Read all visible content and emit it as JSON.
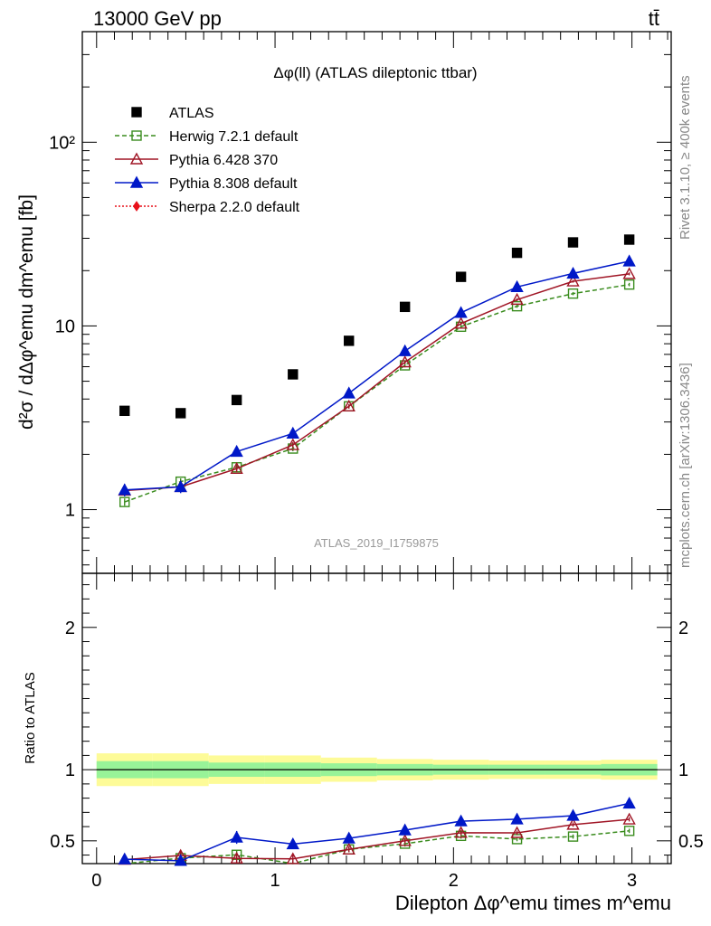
{
  "header": {
    "left": "13000 GeV pp",
    "right": "tt̄"
  },
  "side_text": {
    "rivet": "Rivet 3.1.10, ≥ 400k events",
    "mcplots": "mcplots.cern.ch [arXiv:1306.3436]"
  },
  "chart_data": [
    {
      "type": "scatter",
      "panel": "main",
      "title": "Δφ(ll) (ATLAS dileptonic ttbar)",
      "watermark": "ATLAS_2019_I1759875",
      "ylabel": "d²σ / dΔφ^emu dm^emu [fb]",
      "yscale": "log",
      "ylim": [
        0.45,
        400
      ],
      "xlim": [
        -0.08,
        3.22
      ],
      "yticks": [
        {
          "v": 1,
          "label": "1"
        },
        {
          "v": 10,
          "label": "10"
        },
        {
          "v": 100,
          "label": "10²"
        }
      ],
      "legend_position": "top-left",
      "x": [
        0.157,
        0.471,
        0.785,
        1.1,
        1.414,
        1.728,
        2.042,
        2.356,
        2.67,
        2.985
      ],
      "series": [
        {
          "name": "ATLAS",
          "marker": "square-filled",
          "color": "#000000",
          "dash": "",
          "values": [
            3.45,
            3.35,
            3.95,
            5.45,
            8.3,
            12.7,
            18.5,
            25.0,
            28.5,
            29.5
          ],
          "errors": [
            0,
            0,
            0,
            0,
            0,
            0,
            0,
            0,
            0,
            0
          ]
        },
        {
          "name": "Herwig 7.2.1 default",
          "marker": "square-open",
          "color": "#3a8c1e",
          "dash": "5,3",
          "values": [
            1.1,
            1.42,
            1.7,
            2.15,
            3.65,
            6.1,
            9.9,
            12.8,
            15.0,
            16.8
          ],
          "errors": [
            0.05,
            0.06,
            0.07,
            0.07,
            0.1,
            0.15,
            0.2,
            0.25,
            0.3,
            0.35
          ]
        },
        {
          "name": "Pythia 6.428 370",
          "marker": "triangle-open",
          "color": "#a01525",
          "dash": "",
          "values": [
            1.27,
            1.33,
            1.67,
            2.25,
            3.65,
            6.35,
            10.3,
            13.9,
            17.5,
            19.2
          ],
          "errors": [
            0.05,
            0.06,
            0.07,
            0.08,
            0.1,
            0.15,
            0.2,
            0.25,
            0.3,
            0.35
          ]
        },
        {
          "name": "Pythia 8.308 default",
          "marker": "triangle-filled",
          "color": "#0018c8",
          "dash": "",
          "values": [
            1.28,
            1.33,
            2.07,
            2.6,
            4.3,
            7.3,
            11.8,
            16.3,
            19.3,
            22.5
          ],
          "errors": [
            0.1,
            0.1,
            0.12,
            0.12,
            0.15,
            0.2,
            0.3,
            0.35,
            0.4,
            0.45
          ]
        },
        {
          "name": "Sherpa 2.2.0 default",
          "marker": "diamond-filled",
          "color": "#e8101a",
          "dash": "2,2",
          "values": [],
          "errors": []
        }
      ]
    },
    {
      "type": "line",
      "panel": "ratio",
      "ylabel": "Ratio to ATLAS",
      "xlabel": "Dilepton Δφ^emu times m^emu",
      "ylim": [
        0.34,
        2.38
      ],
      "xlim": [
        -0.08,
        3.22
      ],
      "yticks": [
        {
          "v": 0.5,
          "label": "0.5"
        },
        {
          "v": 1,
          "label": "1"
        },
        {
          "v": 2,
          "label": "2"
        }
      ],
      "xticks": [
        {
          "v": 0,
          "label": "0"
        },
        {
          "v": 1,
          "label": "1"
        },
        {
          "v": 2,
          "label": "2"
        },
        {
          "v": 3,
          "label": "3"
        }
      ],
      "x": [
        0.157,
        0.471,
        0.785,
        1.1,
        1.414,
        1.728,
        2.042,
        2.356,
        2.67,
        2.985
      ],
      "bin_edges": [
        0,
        0.314,
        0.628,
        0.942,
        1.257,
        1.571,
        1.885,
        2.199,
        2.513,
        2.827,
        3.142
      ],
      "band_outer": [
        0.115,
        0.115,
        0.1,
        0.1,
        0.085,
        0.075,
        0.07,
        0.065,
        0.065,
        0.07
      ],
      "band_inner": [
        0.06,
        0.06,
        0.05,
        0.05,
        0.045,
        0.04,
        0.035,
        0.035,
        0.035,
        0.04
      ],
      "band_colors": {
        "outer": "#fdfb98",
        "inner": "#98f398"
      },
      "series": [
        {
          "name": "Herwig 7.2.1 default",
          "marker": "square-open",
          "color": "#3a8c1e",
          "dash": "5,3",
          "values": [
            0.319,
            0.378,
            0.402,
            0.334,
            0.44,
            0.48,
            0.535,
            0.512,
            0.53,
            0.57
          ],
          "errors": [
            0.02,
            0.05,
            0.03,
            0.02,
            0.02,
            0.02,
            0.02,
            0.015,
            0.015,
            0.015
          ]
        },
        {
          "name": "Pythia 6.428 370",
          "marker": "triangle-open",
          "color": "#a01525",
          "dash": "",
          "values": [
            0.368,
            0.397,
            0.377,
            0.373,
            0.44,
            0.5,
            0.557,
            0.556,
            0.614,
            0.651
          ],
          "errors": [
            0.02,
            0.03,
            0.03,
            0.03,
            0.02,
            0.02,
            0.02,
            0.015,
            0.015,
            0.015
          ]
        },
        {
          "name": "Pythia 8.308 default",
          "marker": "triangle-filled",
          "color": "#0018c8",
          "dash": "",
          "values": [
            0.371,
            0.36,
            0.524,
            0.477,
            0.518,
            0.575,
            0.638,
            0.652,
            0.677,
            0.763
          ],
          "errors": [
            0.03,
            0.03,
            0.045,
            0.03,
            0.025,
            0.02,
            0.02,
            0.015,
            0.015,
            0.015
          ]
        }
      ]
    }
  ]
}
